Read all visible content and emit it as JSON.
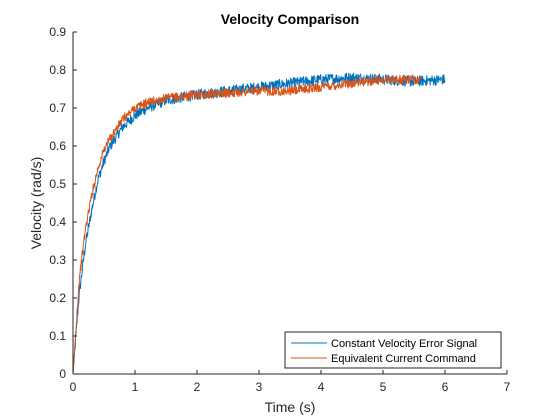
{
  "chart_data": {
    "type": "line",
    "title": "Velocity Comparison",
    "xlabel": "Time (s)",
    "ylabel": "Velocity (rad/s)",
    "xlim": [
      0,
      7
    ],
    "ylim": [
      0,
      0.9
    ],
    "xticks": [
      0,
      1,
      2,
      3,
      4,
      5,
      6,
      7
    ],
    "yticks": [
      0,
      0.1,
      0.2,
      0.3,
      0.4,
      0.5,
      0.6,
      0.7,
      0.8,
      0.9
    ],
    "grid": false,
    "legend_position": "bottom-right",
    "series": [
      {
        "name": "Constant Velocity Error Signal",
        "color": "#0072BD",
        "noise": 0.014,
        "x": [
          0,
          0.1,
          0.2,
          0.3,
          0.4,
          0.5,
          0.6,
          0.8,
          1.0,
          1.2,
          1.5,
          2.0,
          2.5,
          3.0,
          3.5,
          4.0,
          4.5,
          5.0,
          5.5,
          6.0
        ],
        "y": [
          0,
          0.21,
          0.34,
          0.43,
          0.51,
          0.56,
          0.6,
          0.65,
          0.68,
          0.7,
          0.72,
          0.735,
          0.745,
          0.755,
          0.765,
          0.775,
          0.78,
          0.775,
          0.77,
          0.775
        ]
      },
      {
        "name": "Equivalent Current Command",
        "color": "#D95319",
        "noise": 0.012,
        "x": [
          0,
          0.1,
          0.2,
          0.3,
          0.4,
          0.5,
          0.6,
          0.8,
          1.0,
          1.2,
          1.5,
          2.0,
          2.5,
          3.0,
          3.5,
          4.0,
          4.5,
          5.0,
          5.5,
          5.6
        ],
        "y": [
          0,
          0.25,
          0.38,
          0.47,
          0.54,
          0.59,
          0.62,
          0.67,
          0.7,
          0.715,
          0.725,
          0.735,
          0.74,
          0.745,
          0.745,
          0.755,
          0.765,
          0.775,
          0.775,
          0.775
        ]
      }
    ]
  }
}
